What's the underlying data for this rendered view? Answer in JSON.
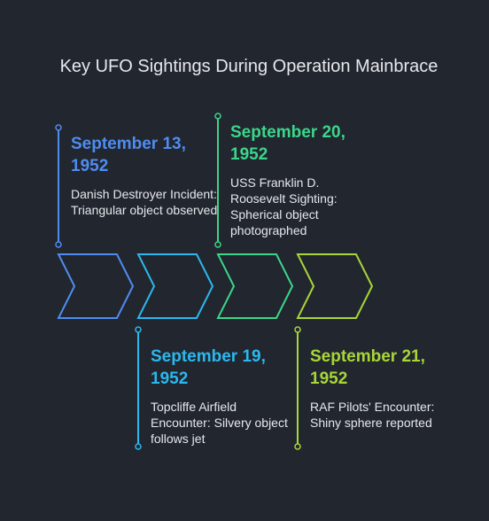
{
  "title": "Key UFO Sightings During Operation Mainbrace",
  "events": [
    {
      "date_line1": "September 13,",
      "date_line2": "1952",
      "description": "Danish Destroyer Incident: Triangular object observed",
      "color": "#4f8cf0"
    },
    {
      "date_line1": "September 19,",
      "date_line2": "1952",
      "description": "Topcliffe Airfield Encounter: Silvery object follows jet",
      "color": "#2bb8ee"
    },
    {
      "date_line1": "September 20,",
      "date_line2": "1952",
      "description": "USS Franklin D. Roosevelt Sighting: Spherical object photographed",
      "color": "#3ad68a"
    },
    {
      "date_line1": "September 21,",
      "date_line2": "1952",
      "description": "RAF Pilots' Encounter: Shiny sphere reported",
      "color": "#a8d637"
    }
  ]
}
